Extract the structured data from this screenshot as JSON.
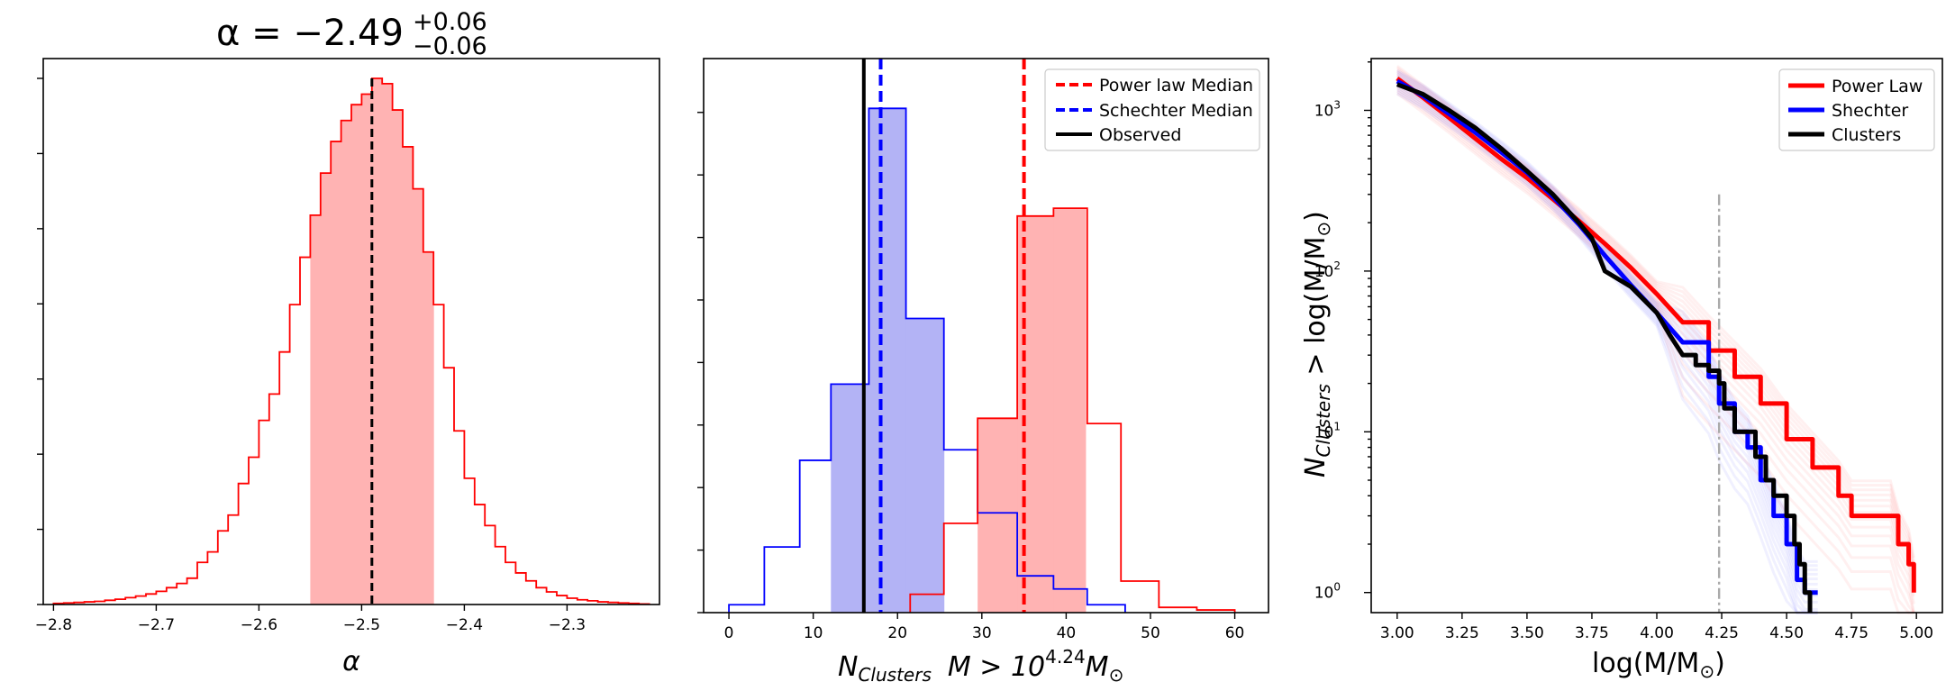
{
  "chart_data": [
    {
      "type": "histogram",
      "title_symbol": "α = −2.49",
      "title_sup": "+0.06",
      "title_sub": "−0.06",
      "xlabel": "α",
      "xlim": [
        -2.81,
        -2.21
      ],
      "xticks": [
        -2.8,
        -2.7,
        -2.6,
        -2.5,
        -2.4,
        -2.3
      ],
      "xtick_labels": [
        "−2.8",
        "−2.7",
        "−2.6",
        "−2.5",
        "−2.4",
        "−2.3"
      ],
      "ylim": [
        0,
        1
      ],
      "bin_edges": [
        -2.8,
        -2.79,
        -2.78,
        -2.77,
        -2.76,
        -2.75,
        -2.74,
        -2.73,
        -2.72,
        -2.71,
        -2.7,
        -2.69,
        -2.68,
        -2.67,
        -2.66,
        -2.65,
        -2.64,
        -2.63,
        -2.62,
        -2.61,
        -2.6,
        -2.59,
        -2.58,
        -2.57,
        -2.56,
        -2.55,
        -2.54,
        -2.53,
        -2.52,
        -2.51,
        -2.5,
        -2.49,
        -2.48,
        -2.47,
        -2.46,
        -2.45,
        -2.44,
        -2.43,
        -2.42,
        -2.41,
        -2.4,
        -2.39,
        -2.38,
        -2.37,
        -2.36,
        -2.35,
        -2.34,
        -2.33,
        -2.32,
        -2.31,
        -2.3,
        -2.29,
        -2.28,
        -2.27,
        -2.26,
        -2.25,
        -2.24,
        -2.23,
        -2.22
      ],
      "counts": [
        0.002,
        0.003,
        0.004,
        0.005,
        0.006,
        0.008,
        0.01,
        0.013,
        0.016,
        0.02,
        0.025,
        0.032,
        0.04,
        0.05,
        0.08,
        0.1,
        0.14,
        0.17,
        0.23,
        0.28,
        0.35,
        0.4,
        0.48,
        0.57,
        0.66,
        0.74,
        0.82,
        0.88,
        0.92,
        0.95,
        0.97,
        1.0,
        0.99,
        0.94,
        0.87,
        0.79,
        0.67,
        0.57,
        0.45,
        0.33,
        0.24,
        0.19,
        0.15,
        0.11,
        0.08,
        0.06,
        0.045,
        0.032,
        0.024,
        0.017,
        0.012,
        0.009,
        0.007,
        0.005,
        0.004,
        0.003,
        0.002,
        0.001
      ],
      "shaded_range": [
        -2.55,
        -2.43
      ],
      "median": -2.49,
      "colors": {
        "line": "#ff0000",
        "fill": "#ffb3b3",
        "median": "#000000"
      }
    },
    {
      "type": "histogram",
      "xlabel_main": "N",
      "xlabel_sub": "Clusters",
      "xlabel_tail": "M > 10",
      "xlabel_exp": "4.24",
      "xlabel_unit": "M",
      "xlabel_unit_sub": "⊙",
      "xlim": [
        -3,
        64
      ],
      "xticks": [
        0,
        10,
        20,
        30,
        40,
        50,
        60
      ],
      "xtick_labels": [
        "0",
        "10",
        "20",
        "30",
        "40",
        "50",
        "60"
      ],
      "ylim": [
        0,
        1
      ],
      "series": [
        {
          "name": "Schechter",
          "bin_edges": [
            0,
            4.2,
            8.4,
            12.1,
            16.6,
            21,
            25.5,
            29.5,
            34.2,
            38.5,
            42.5,
            47
          ],
          "counts": [
            0.015,
            0.125,
            0.29,
            0.435,
            0.96,
            0.56,
            0.31,
            0.19,
            0.07,
            0.045,
            0.015
          ],
          "shaded_range": [
            12.1,
            25.5
          ],
          "colors": {
            "line": "#0000ff",
            "fill": "#b3b3f5"
          }
        },
        {
          "name": "Power law",
          "bin_edges": [
            21.5,
            25.5,
            29.5,
            34.2,
            38.5,
            42.5,
            46.5,
            51,
            55.5,
            60
          ],
          "counts": [
            0.035,
            0.17,
            0.37,
            0.755,
            0.77,
            0.36,
            0.06,
            0.01,
            0.005
          ],
          "shaded_range": [
            29.5,
            42.3
          ],
          "colors": {
            "line": "#ff0000",
            "fill": "#ffb3b3"
          }
        }
      ],
      "vlines": [
        {
          "label": "Power law Median",
          "x": 35,
          "color": "#ff0000",
          "style": "dashed"
        },
        {
          "label": "Schechter Median",
          "x": 18,
          "color": "#0000ff",
          "style": "dashed"
        },
        {
          "label": "Observed",
          "x": 16,
          "color": "#000000",
          "style": "solid"
        }
      ],
      "legend_position": "top-right"
    },
    {
      "type": "line",
      "scale": "log-y",
      "xlabel": "log(M/M",
      "xlabel_sub": "⊙",
      "xlabel_end": ")",
      "ylabel_main": "N",
      "ylabel_sub": "Clusters",
      "ylabel_tail": " > log(M/M",
      "ylabel_sub2": "⊙",
      "ylabel_end": ")",
      "xlim": [
        2.9,
        5.1
      ],
      "ylim": [
        0.75,
        2100
      ],
      "xticks": [
        3.0,
        3.25,
        3.5,
        3.75,
        4.0,
        4.25,
        4.5,
        4.75,
        5.0
      ],
      "xtick_labels": [
        "3.00",
        "3.25",
        "3.50",
        "3.75",
        "4.00",
        "4.25",
        "4.50",
        "4.75",
        "5.00"
      ],
      "yticks": [
        1,
        10,
        100,
        1000
      ],
      "ytick_base": "10",
      "ytick_exps": [
        "0",
        "1",
        "2",
        "3"
      ],
      "cut_line": 4.24,
      "series": [
        {
          "name": "Power Law",
          "color": "#ff0000",
          "points": [
            [
              3.0,
              1580
            ],
            [
              3.1,
              1200
            ],
            [
              3.2,
              900
            ],
            [
              3.3,
              670
            ],
            [
              3.4,
              500
            ],
            [
              3.5,
              380
            ],
            [
              3.6,
              280
            ],
            [
              3.7,
              205
            ],
            [
              3.8,
              148
            ],
            [
              3.9,
              105
            ],
            [
              4.0,
              72
            ],
            [
              4.1,
              48
            ],
            [
              4.2,
              32
            ],
            [
              4.3,
              22
            ],
            [
              4.4,
              15
            ],
            [
              4.5,
              9
            ],
            [
              4.6,
              6
            ],
            [
              4.7,
              4
            ],
            [
              4.75,
              3
            ],
            [
              4.9,
              3
            ],
            [
              4.93,
              2
            ],
            [
              4.97,
              1.5
            ],
            [
              4.99,
              1
            ]
          ]
        },
        {
          "name": "Shechter",
          "color": "#0000ff",
          "points": [
            [
              3.0,
              1520
            ],
            [
              3.1,
              1230
            ],
            [
              3.2,
              950
            ],
            [
              3.3,
              730
            ],
            [
              3.4,
              550
            ],
            [
              3.5,
              410
            ],
            [
              3.6,
              290
            ],
            [
              3.7,
              195
            ],
            [
              3.8,
              125
            ],
            [
              3.9,
              82
            ],
            [
              4.0,
              55
            ],
            [
              4.1,
              36
            ],
            [
              4.2,
              22
            ],
            [
              4.24,
              15
            ],
            [
              4.3,
              10
            ],
            [
              4.35,
              8
            ],
            [
              4.4,
              5
            ],
            [
              4.45,
              3
            ],
            [
              4.5,
              2
            ],
            [
              4.54,
              1.2
            ],
            [
              4.57,
              1
            ],
            [
              4.62,
              1
            ]
          ]
        },
        {
          "name": "Clusters",
          "color": "#000000",
          "points": [
            [
              3.0,
              1450
            ],
            [
              3.1,
              1260
            ],
            [
              3.2,
              1000
            ],
            [
              3.3,
              780
            ],
            [
              3.4,
              580
            ],
            [
              3.5,
              420
            ],
            [
              3.6,
              300
            ],
            [
              3.7,
              200
            ],
            [
              3.75,
              160
            ],
            [
              3.8,
              100
            ],
            [
              3.9,
              80
            ],
            [
              4.0,
              55
            ],
            [
              4.05,
              40
            ],
            [
              4.1,
              30
            ],
            [
              4.15,
              26
            ],
            [
              4.2,
              24
            ],
            [
              4.24,
              20
            ],
            [
              4.26,
              14
            ],
            [
              4.3,
              10
            ],
            [
              4.38,
              7
            ],
            [
              4.42,
              5
            ],
            [
              4.45,
              4
            ],
            [
              4.5,
              3
            ],
            [
              4.53,
              2
            ],
            [
              4.55,
              1.5
            ],
            [
              4.57,
              1
            ],
            [
              4.59,
              0.8
            ]
          ]
        }
      ],
      "legend_position": "top-right"
    }
  ]
}
